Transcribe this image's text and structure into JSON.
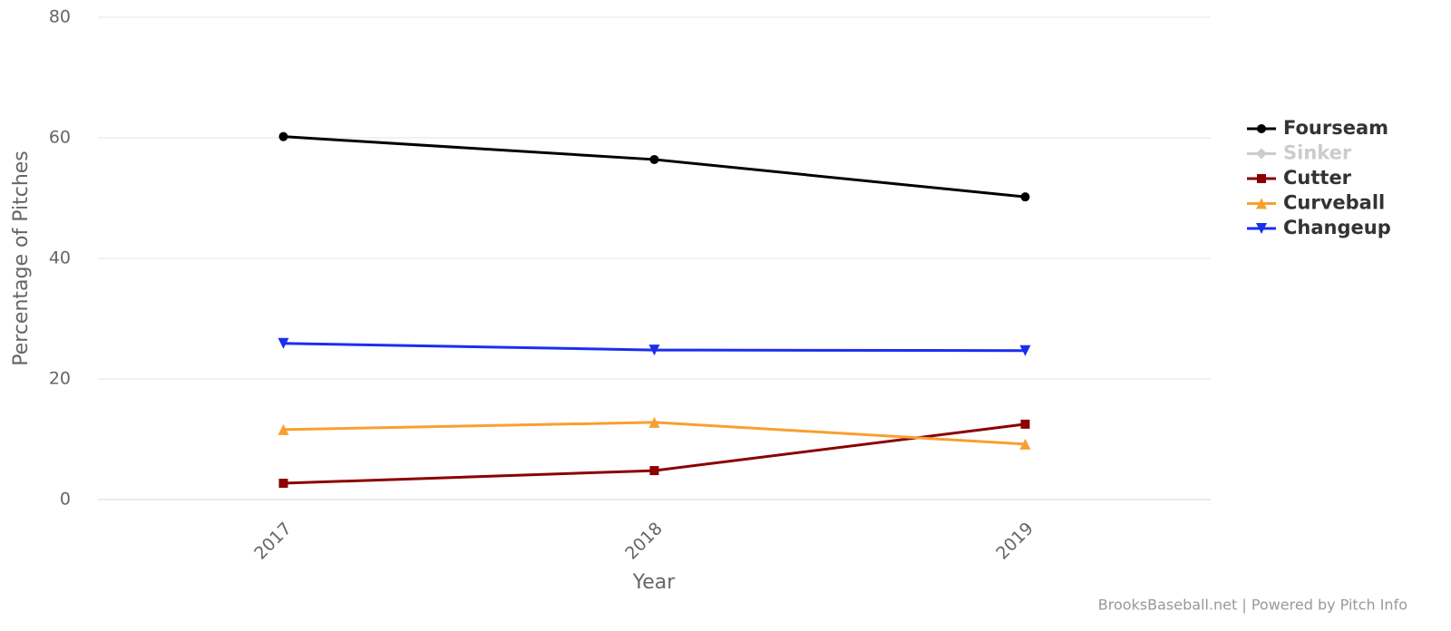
{
  "chart_data": {
    "type": "line",
    "categories": [
      "2017",
      "2018",
      "2019"
    ],
    "y_label": "Percentage of Pitches",
    "x_label": "Year",
    "credits": "BrooksBaseball.net | Powered by Pitch Info",
    "ylim": [
      0,
      80
    ],
    "yticks": [
      0,
      20,
      40,
      60,
      80
    ],
    "grid": true,
    "legend": "right",
    "series": [
      {
        "name": "Fourseam",
        "color": "#000000",
        "marker": "circle",
        "visible": true,
        "values": [
          60.2,
          56.4,
          50.2
        ]
      },
      {
        "name": "Sinker",
        "color": "#cccccc",
        "marker": "diamond",
        "visible": false,
        "values": [
          null,
          null,
          null
        ]
      },
      {
        "name": "Cutter",
        "color": "#8b0000",
        "marker": "square",
        "visible": true,
        "values": [
          2.7,
          4.8,
          12.5
        ]
      },
      {
        "name": "Curveball",
        "color": "#f7a030",
        "marker": "triangle",
        "visible": true,
        "values": [
          11.6,
          12.8,
          9.2
        ]
      },
      {
        "name": "Changeup",
        "color": "#1a2ef0",
        "marker": "triangle-down",
        "visible": true,
        "values": [
          25.9,
          24.8,
          24.7
        ]
      }
    ]
  }
}
